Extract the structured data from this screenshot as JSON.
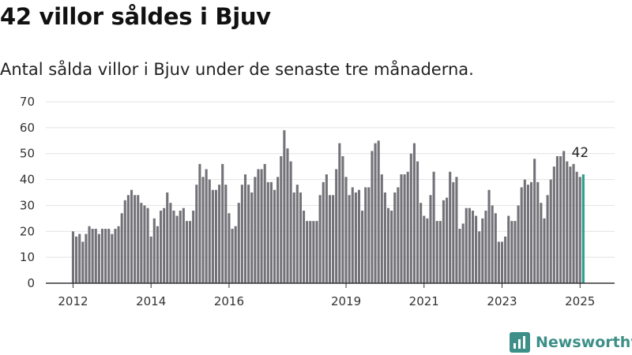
{
  "title": "42 villor såldes i Bjuv",
  "subtitle": "Antal sålda villor i Bjuv under de senaste tre månaderna.",
  "brand": "Newsworthy",
  "colors": {
    "bar": "#737278",
    "highlight": "#2a9d8f",
    "grid": "#e2e2e2",
    "axis": "#333333",
    "brand": "#3d8f88"
  },
  "chart_data": {
    "type": "bar",
    "title": "42 villor såldes i Bjuv",
    "subtitle": "Antal sålda villor i Bjuv under de senaste tre månaderna.",
    "xlabel": "",
    "ylabel": "",
    "ylim": [
      0,
      70
    ],
    "yticks": [
      0,
      10,
      20,
      30,
      40,
      50,
      60,
      70
    ],
    "xticks": [
      {
        "label": "2012",
        "year": 2012
      },
      {
        "label": "2014",
        "year": 2014
      },
      {
        "label": "2016",
        "year": 2016
      },
      {
        "label": "2019",
        "year": 2019
      },
      {
        "label": "2021",
        "year": 2021
      },
      {
        "label": "2023",
        "year": 2023
      },
      {
        "label": "2025",
        "year": 2025
      }
    ],
    "grid": true,
    "frequency": "monthly",
    "start": "2012-01",
    "end": "2025-01",
    "values": [
      20,
      18,
      19,
      16,
      19,
      22,
      21,
      21,
      19,
      21,
      21,
      21,
      19,
      21,
      22,
      27,
      32,
      34,
      36,
      34,
      34,
      31,
      30,
      29,
      18,
      25,
      22,
      28,
      29,
      35,
      31,
      28,
      26,
      28,
      29,
      24,
      24,
      28,
      38,
      46,
      41,
      44,
      40,
      36,
      36,
      38,
      46,
      38,
      27,
      21,
      22,
      31,
      38,
      42,
      38,
      35,
      41,
      44,
      44,
      46,
      39,
      39,
      36,
      41,
      49,
      59,
      52,
      47,
      35,
      38,
      35,
      28,
      24,
      24,
      24,
      24,
      34,
      39,
      42,
      34,
      34,
      44,
      54,
      49,
      41,
      34,
      37,
      35,
      36,
      28,
      37,
      37,
      51,
      54,
      55,
      42,
      35,
      29,
      28,
      35,
      37,
      42,
      42,
      43,
      50,
      54,
      47,
      31,
      26,
      25,
      34,
      43,
      24,
      24,
      32,
      33,
      43,
      39,
      41,
      21,
      23,
      29,
      29,
      28,
      26,
      20,
      25,
      28,
      36,
      30,
      27,
      16,
      16,
      18,
      26,
      24,
      24,
      30,
      37,
      40,
      38,
      39,
      48,
      39,
      31,
      25,
      34,
      40,
      45,
      49,
      49,
      51,
      47,
      45,
      46,
      43,
      41,
      42
    ],
    "highlight_last": true,
    "highlight_label": "42"
  }
}
